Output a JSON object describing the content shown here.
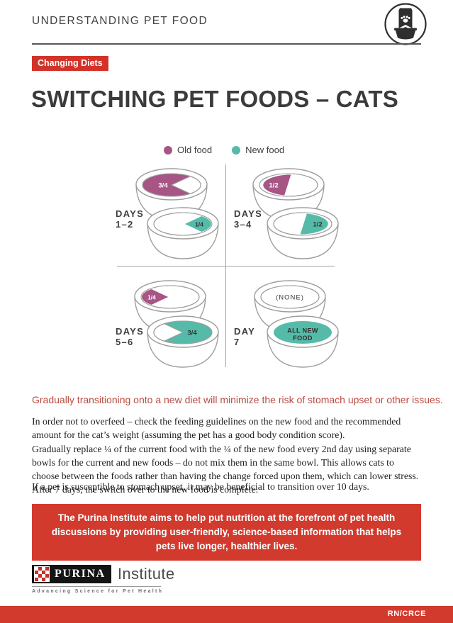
{
  "colors": {
    "accent_red": "#d23329",
    "banner_red": "#d23a2e",
    "old_food": "#a75585",
    "new_food": "#55bba8",
    "bowl_outline": "#9e9e9e",
    "heading_text": "#3b3b3c",
    "highlight_text": "#b94b41"
  },
  "header": {
    "title": "UNDERSTANDING PET FOOD",
    "icon": "pet-food-bag-and-bowl-icon"
  },
  "badge": {
    "label": "Changing Diets"
  },
  "main_title": "SWITCHING PET FOODS – CATS",
  "legend": {
    "items": [
      {
        "label": "Old food",
        "color": "#a75585"
      },
      {
        "label": "New food",
        "color": "#55bba8"
      }
    ]
  },
  "diagram": {
    "quadrants": [
      {
        "day_label": "DAYS",
        "day_range": "1–2",
        "top_bowl": {
          "food": "old",
          "portion": "3/4",
          "label": "3/4"
        },
        "bottom_bowl": {
          "food": "new",
          "portion": "1/4",
          "label": "1/4"
        }
      },
      {
        "day_label": "DAYS",
        "day_range": "3–4",
        "top_bowl": {
          "food": "old",
          "portion": "1/2",
          "label": "1/2"
        },
        "bottom_bowl": {
          "food": "new",
          "portion": "1/2",
          "label": "1/2"
        }
      },
      {
        "day_label": "DAYS",
        "day_range": "5–6",
        "top_bowl": {
          "food": "old",
          "portion": "1/4",
          "label": "1/4"
        },
        "bottom_bowl": {
          "food": "new",
          "portion": "3/4",
          "label": "3/4"
        }
      },
      {
        "day_label": "DAY",
        "day_range": "7",
        "top_bowl": {
          "food": "none",
          "portion": "none",
          "label": "(NONE)"
        },
        "bottom_bowl": {
          "food": "new",
          "portion": "all",
          "label": "ALL NEW FOOD"
        }
      }
    ]
  },
  "highlight": "Gradually transitioning onto a new diet will minimize the risk of stomach upset or other issues.",
  "paragraphs": [
    "In order not to overfeed – check the feeding guidelines on the new food and the recommended amount for the cat’s weight (assuming the pet has a good body condition score).",
    "Gradually replace ¼ of the current food with the ¼ of the new food every 2nd day using separate bowls for the current and new foods – do not mix them in the same bowl. This allows cats to choose between the foods rather than having the change forced upon them, which can lower stress. After 7 days, the switch over to the new food is complete.",
    "If a pet is susceptible to stomach upset, it may be beneficial to transition over 10 days."
  ],
  "banner": {
    "text": "The Purina Institute aims to help put nutrition at the forefront of pet health discussions by providing user-friendly, science-based information that helps pets live longer, healthier lives."
  },
  "footer": {
    "brand": "PURINA",
    "brand_suffix": "Institute",
    "tagline": "Advancing Science for Pet Health",
    "doc_code": "RN/CRCE"
  }
}
